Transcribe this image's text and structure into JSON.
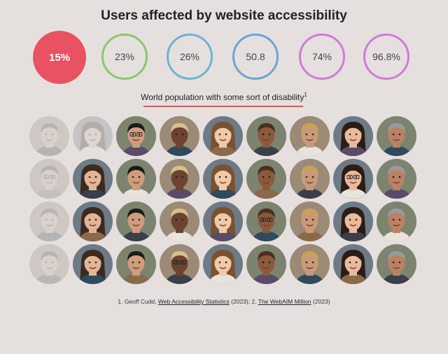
{
  "title": "Users affected by website accessibility",
  "stats": [
    {
      "label": "15%",
      "color": "#e85263",
      "active": true
    },
    {
      "label": "23%",
      "color": "#8bc76a",
      "active": false
    },
    {
      "label": "26%",
      "color": "#6cb3d3",
      "active": false
    },
    {
      "label": "50.8",
      "color": "#6aa4d6",
      "active": false
    },
    {
      "label": "74%",
      "color": "#d07ad8",
      "active": false
    },
    {
      "label": "96.8%",
      "color": "#d07ad8",
      "active": false
    }
  ],
  "caption": "World population with some sort of disability",
  "caption_sup": "1",
  "faces": {
    "rows": 4,
    "cols": 9,
    "highlighted_fraction": 0.15
  },
  "footnote": {
    "prefix": "1. Geoff Cudd,",
    "link1": "Web Accessibility Statistics",
    "middle": "(2023); 2.",
    "link2": "The WebAIM Million",
    "suffix": "(2023)"
  },
  "icons": {
    "face": "person-face-photo"
  }
}
